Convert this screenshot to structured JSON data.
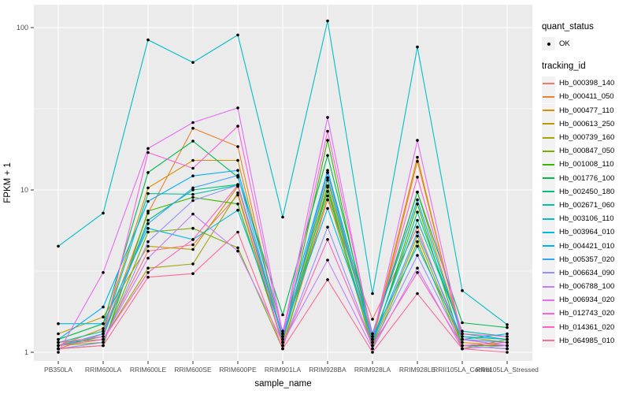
{
  "figure": {
    "background": "#FFFFFF",
    "panel_background": "#EBEBEB",
    "gridline_color": "#FFFFFF",
    "tick_color": "#333333",
    "text_color": "#4D4D4D",
    "point_color": "#000000"
  },
  "chart_data": {
    "type": "line",
    "title": "",
    "xlabel": "sample_name",
    "ylabel": "FPKM + 1",
    "y_scale": "log10",
    "y_ticks": [
      1,
      10,
      100
    ],
    "y_tick_labels": [
      "1",
      "10",
      "100"
    ],
    "y_minor_ticks": [
      3.162,
      31.62
    ],
    "ylim": [
      0.85,
      142
    ],
    "grid": true,
    "legend_position": "right",
    "categories": [
      "PB350LA",
      "RRIM600LA",
      "RRIM600LE",
      "RRIM600SE",
      "RRIM600PE",
      "RRIM901LA",
      "RRIM928BA",
      "RRIM928LA",
      "RRIM928LE",
      "RRII105LA_Control",
      "RRII105LA_Stressed"
    ],
    "series": [
      {
        "name": "Hb_000398_140",
        "color": "#F8766D",
        "values": [
          1.1,
          1.2,
          4.2,
          4.6,
          9.3,
          1.1,
          8.7,
          1.6,
          5.9,
          1.1,
          1.05
        ]
      },
      {
        "name": "Hb_000411_050",
        "color": "#EA8331",
        "values": [
          1.05,
          1.3,
          7.2,
          24,
          18.5,
          1.15,
          11.9,
          1.15,
          15.0,
          1.2,
          1.1
        ]
      },
      {
        "name": "Hb_000477_110",
        "color": "#D89000",
        "values": [
          1.1,
          1.4,
          10.3,
          15.2,
          15.2,
          1.2,
          12.8,
          1.2,
          15.9,
          1.15,
          1.1
        ]
      },
      {
        "name": "Hb_000613_250",
        "color": "#C09B00",
        "values": [
          1.3,
          1.65,
          4.5,
          4.3,
          10.5,
          1.25,
          10.6,
          1.25,
          9.7,
          1.25,
          1.15
        ]
      },
      {
        "name": "Hb_000739_160",
        "color": "#A3A500",
        "values": [
          1.15,
          1.2,
          3.3,
          3.5,
          9.6,
          1.1,
          9.2,
          1.1,
          5.2,
          1.1,
          1.05
        ]
      },
      {
        "name": "Hb_000847_050",
        "color": "#7CAE00",
        "values": [
          1.1,
          1.15,
          5.5,
          5.8,
          4.4,
          1.05,
          10.4,
          1.05,
          4.8,
          1.05,
          1.2
        ]
      },
      {
        "name": "Hb_001008_110",
        "color": "#39B600",
        "values": [
          1.05,
          1.1,
          7.4,
          9.0,
          8.2,
          1.15,
          20.2,
          1.1,
          8.2,
          1.1,
          1.1
        ]
      },
      {
        "name": "Hb_001776_100",
        "color": "#00BB4E",
        "values": [
          1.2,
          1.5,
          12.8,
          20,
          12.0,
          1.7,
          16.3,
          1.3,
          9.7,
          1.52,
          1.42
        ]
      },
      {
        "name": "Hb_002450_180",
        "color": "#00BF7D",
        "values": [
          1.1,
          1.25,
          6.5,
          10.0,
          10.8,
          1.2,
          9.8,
          1.15,
          7.3,
          1.3,
          1.2
        ]
      },
      {
        "name": "Hb_002671_060",
        "color": "#00C1A3",
        "values": [
          1.15,
          1.35,
          9.5,
          9.4,
          10.7,
          1.25,
          11.5,
          1.2,
          6.5,
          1.35,
          1.25
        ]
      },
      {
        "name": "Hb_003106_110",
        "color": "#00BFC4",
        "values": [
          4.5,
          7.2,
          84,
          61,
          90,
          6.8,
          110,
          2.3,
          76,
          2.4,
          1.48
        ]
      },
      {
        "name": "Hb_003964_010",
        "color": "#00BAE0",
        "values": [
          1.5,
          1.5,
          5.8,
          4.95,
          7.5,
          1.3,
          7.7,
          1.25,
          4.5,
          1.2,
          1.3
        ]
      },
      {
        "name": "Hb_004421_010",
        "color": "#00B0F6",
        "values": [
          1.2,
          1.9,
          8.5,
          12.2,
          13.2,
          1.35,
          13.2,
          1.3,
          8.7,
          1.25,
          1.2
        ]
      },
      {
        "name": "Hb_005357_020",
        "color": "#35A2FF",
        "values": [
          1.1,
          1.3,
          6.2,
          10.3,
          12.3,
          1.2,
          12.8,
          1.15,
          5.5,
          1.2,
          1.15
        ]
      },
      {
        "name": "Hb_006634_090",
        "color": "#9590FF",
        "values": [
          1.05,
          1.15,
          4.8,
          8.6,
          10.7,
          1.1,
          5.9,
          1.1,
          3.95,
          1.1,
          1.05
        ]
      },
      {
        "name": "Hb_006788_100",
        "color": "#C77CFF",
        "values": [
          1.1,
          1.2,
          3.8,
          7.1,
          4.2,
          1.15,
          3.7,
          1.05,
          3.3,
          1.05,
          1.1
        ]
      },
      {
        "name": "Hb_006934_020",
        "color": "#E76BF3",
        "values": [
          1.0,
          3.1,
          18,
          26,
          32,
          1.3,
          28,
          1.2,
          20.2,
          1.2,
          1.1
        ]
      },
      {
        "name": "Hb_012743_020",
        "color": "#FA62DB",
        "values": [
          1.15,
          1.25,
          17,
          13.6,
          24.7,
          1.25,
          23,
          1.25,
          12,
          1.3,
          1.25
        ]
      },
      {
        "name": "Hb_014361_020",
        "color": "#FF62BC",
        "values": [
          1.1,
          1.2,
          3.1,
          4.95,
          10.7,
          1.1,
          4.95,
          1.1,
          3.1,
          1.1,
          1.15
        ]
      },
      {
        "name": "Hb_064985_010",
        "color": "#FF6A98",
        "values": [
          1.05,
          1.1,
          2.9,
          3.05,
          5.5,
          1.05,
          2.8,
          1.0,
          2.3,
          1.05,
          1.0
        ]
      }
    ]
  },
  "legend": {
    "quant_status_title": "quant_status",
    "quant_status_items": [
      {
        "label": "OK",
        "symbol": "point"
      }
    ],
    "tracking_id_title": "tracking_id"
  }
}
